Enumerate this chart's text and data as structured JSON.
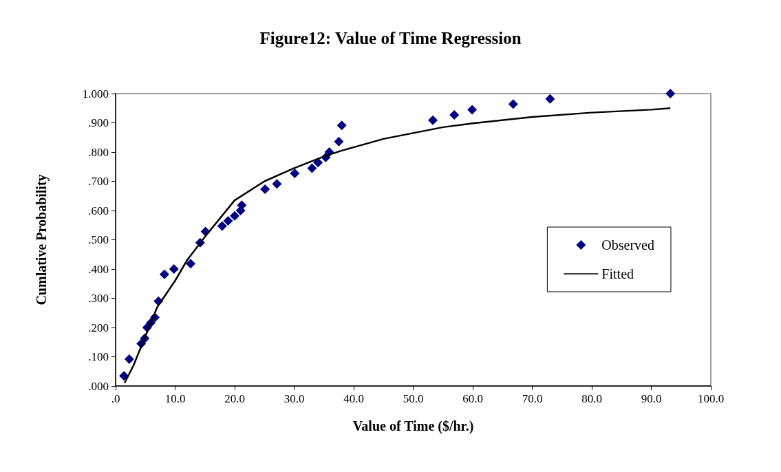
{
  "chart_data": {
    "type": "scatter",
    "title": "Figure12: Value of Time Regression",
    "xlabel": "Value of Time ($/hr.)",
    "ylabel": "Cumlative Probability",
    "legend": "right",
    "grid": false,
    "marker": "diamond",
    "xlim": [
      0,
      100
    ],
    "xticks": [
      {
        "value": 0,
        "label": ".0"
      },
      {
        "value": 10,
        "label": "10.0"
      },
      {
        "value": 20,
        "label": "20.0"
      },
      {
        "value": 30,
        "label": "30.0"
      },
      {
        "value": 40,
        "label": "40.0"
      },
      {
        "value": 50,
        "label": "50.0"
      },
      {
        "value": 60,
        "label": "60.0"
      },
      {
        "value": 70,
        "label": "70.0"
      },
      {
        "value": 80,
        "label": "80.0"
      },
      {
        "value": 90,
        "label": "90.0"
      },
      {
        "value": 100,
        "label": "100.0"
      }
    ],
    "ylim": [
      0,
      1
    ],
    "yticks": [
      {
        "value": 0,
        "label": ".000"
      },
      {
        "value": 0.1,
        "label": ".100"
      },
      {
        "value": 0.2,
        "label": ".200"
      },
      {
        "value": 0.3,
        "label": ".300"
      },
      {
        "value": 0.4,
        "label": ".400"
      },
      {
        "value": 0.5,
        "label": ".500"
      },
      {
        "value": 0.6,
        "label": ".600"
      },
      {
        "value": 0.7,
        "label": ".700"
      },
      {
        "value": 0.8,
        "label": ".800"
      },
      {
        "value": 0.9,
        "label": ".900"
      },
      {
        "value": 1,
        "label": "1.000"
      }
    ],
    "series": [
      {
        "name": "Observed",
        "color": "#000080",
        "x": [
          1.4,
          2.3,
          4.3,
          4.9,
          5.3,
          5.9,
          6.6,
          7.2,
          8.2,
          9.8,
          12.6,
          14.2,
          15.1,
          17.9,
          18.9,
          20.0,
          21.0,
          21.2,
          25.1,
          27.1,
          30.1,
          33.0,
          34.0,
          35.3,
          35.9,
          37.5,
          38.0,
          53.3,
          56.9,
          59.9,
          66.8,
          73.0,
          93.2
        ],
        "values": [
          0.035,
          0.092,
          0.145,
          0.163,
          0.2,
          0.216,
          0.235,
          0.29,
          0.382,
          0.4,
          0.418,
          0.49,
          0.528,
          0.547,
          0.565,
          0.582,
          0.6,
          0.618,
          0.673,
          0.691,
          0.727,
          0.745,
          0.764,
          0.782,
          0.8,
          0.836,
          0.891,
          0.909,
          0.927,
          0.945,
          0.964,
          0.982,
          1.0
        ]
      },
      {
        "name": "Fitted",
        "type": "line",
        "color": "#000000",
        "marker": "none",
        "line_style": "solid",
        "x": [
          1.5,
          3,
          5,
          7,
          10,
          12,
          15,
          20,
          25,
          30,
          35,
          38,
          45,
          50,
          55,
          60,
          70,
          80,
          90,
          93.2
        ],
        "values": [
          0.01,
          0.07,
          0.17,
          0.27,
          0.36,
          0.43,
          0.51,
          0.635,
          0.7,
          0.745,
          0.785,
          0.805,
          0.845,
          0.865,
          0.885,
          0.898,
          0.92,
          0.935,
          0.945,
          0.95
        ]
      }
    ]
  }
}
